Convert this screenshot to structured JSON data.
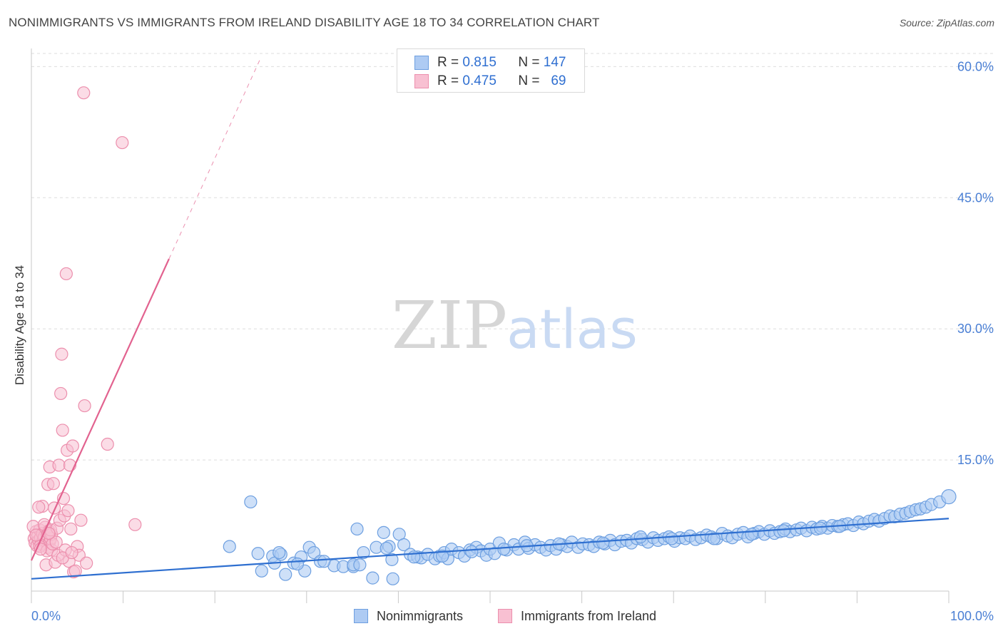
{
  "title": "NONIMMIGRANTS VS IMMIGRANTS FROM IRELAND DISABILITY AGE 18 TO 34 CORRELATION CHART",
  "source": "Source: ZipAtlas.com",
  "watermark": {
    "zip": "ZIP",
    "atlas": "atlas"
  },
  "legend_top": [
    {
      "r_label": "R =",
      "r_value": "0.815",
      "n_label": "N =",
      "n_value": "147"
    },
    {
      "r_label": "R =",
      "r_value": "0.475",
      "n_label": "N =",
      "n_value": "69"
    }
  ],
  "legend_bottom": [
    "Nonimmigrants",
    "Immigrants from Ireland"
  ],
  "colors": {
    "blue_fill": "#aecbf3",
    "blue_stroke": "#6d9fe0",
    "blue_line": "#2e6fd0",
    "pink_fill": "#f8c0d2",
    "pink_stroke": "#ec8fad",
    "pink_line": "#e2628f",
    "tick_label": "#4a7fd4",
    "grid": "#dddddd"
  },
  "chart_data": {
    "type": "scatter",
    "title": "NONIMMIGRANTS VS IMMIGRANTS FROM IRELAND DISABILITY AGE 18 TO 34 CORRELATION CHART",
    "xlabel": "",
    "ylabel": "Disability Age 18 to 34",
    "xlim": [
      0,
      100
    ],
    "ylim": [
      0,
      61.5
    ],
    "x_tick_labels": [
      "0.0%",
      "100.0%"
    ],
    "y_ticks": [
      15,
      30,
      45,
      60
    ],
    "y_tick_labels": [
      "15.0%",
      "30.0%",
      "45.0%",
      "60.0%"
    ],
    "series": [
      {
        "name": "Nonimmigrants",
        "R": 0.815,
        "N": 147,
        "trend": {
          "x": [
            0,
            100
          ],
          "y": [
            1.4,
            8.3
          ]
        },
        "points": [
          [
            21.6,
            5.1
          ],
          [
            24.7,
            4.3
          ],
          [
            25.1,
            2.3
          ],
          [
            26.3,
            4.0
          ],
          [
            26.5,
            3.2
          ],
          [
            27.2,
            4.2
          ],
          [
            27.7,
            1.9
          ],
          [
            28.6,
            3.2
          ],
          [
            29.4,
            3.9
          ],
          [
            29.8,
            2.3
          ],
          [
            30.3,
            5.0
          ],
          [
            30.8,
            4.4
          ],
          [
            31.5,
            3.4
          ],
          [
            33.0,
            2.9
          ],
          [
            34.0,
            2.8
          ],
          [
            35.1,
            2.8
          ],
          [
            35.1,
            3.0
          ],
          [
            35.5,
            7.1
          ],
          [
            35.8,
            3.0
          ],
          [
            36.2,
            4.4
          ],
          [
            37.2,
            1.5
          ],
          [
            37.6,
            5.0
          ],
          [
            38.4,
            6.7
          ],
          [
            39.0,
            5.1
          ],
          [
            39.3,
            3.6
          ],
          [
            39.4,
            1.4
          ],
          [
            40.1,
            6.5
          ],
          [
            40.6,
            5.3
          ],
          [
            41.3,
            4.2
          ],
          [
            42.1,
            3.9
          ],
          [
            42.5,
            3.8
          ],
          [
            43.2,
            4.2
          ],
          [
            44.0,
            3.7
          ],
          [
            44.5,
            4.0
          ],
          [
            45.0,
            4.4
          ],
          [
            45.4,
            3.7
          ],
          [
            45.8,
            4.8
          ],
          [
            46.6,
            4.4
          ],
          [
            47.2,
            4.0
          ],
          [
            47.8,
            4.7
          ],
          [
            48.5,
            5.0
          ],
          [
            49.0,
            4.6
          ],
          [
            49.6,
            4.1
          ],
          [
            50.0,
            4.8
          ],
          [
            50.5,
            4.3
          ],
          [
            51.0,
            5.5
          ],
          [
            51.8,
            4.7
          ],
          [
            52.6,
            5.3
          ],
          [
            53.1,
            4.8
          ],
          [
            53.8,
            5.6
          ],
          [
            54.2,
            4.9
          ],
          [
            54.9,
            5.3
          ],
          [
            55.5,
            5.0
          ],
          [
            56.1,
            4.7
          ],
          [
            56.6,
            5.2
          ],
          [
            57.2,
            4.8
          ],
          [
            57.8,
            5.3
          ],
          [
            58.4,
            5.1
          ],
          [
            58.9,
            5.6
          ],
          [
            59.6,
            5.0
          ],
          [
            60.1,
            5.4
          ],
          [
            60.8,
            5.3
          ],
          [
            61.3,
            5.1
          ],
          [
            61.9,
            5.6
          ],
          [
            62.5,
            5.4
          ],
          [
            63.1,
            5.8
          ],
          [
            63.6,
            5.3
          ],
          [
            64.3,
            5.7
          ],
          [
            64.9,
            5.8
          ],
          [
            65.4,
            5.5
          ],
          [
            66.0,
            6.0
          ],
          [
            66.6,
            5.9
          ],
          [
            67.2,
            5.6
          ],
          [
            67.8,
            6.1
          ],
          [
            68.3,
            5.8
          ],
          [
            69.0,
            6.0
          ],
          [
            69.5,
            6.2
          ],
          [
            70.1,
            5.7
          ],
          [
            70.7,
            6.1
          ],
          [
            71.3,
            6.0
          ],
          [
            71.8,
            6.3
          ],
          [
            72.4,
            5.9
          ],
          [
            73.0,
            6.1
          ],
          [
            73.6,
            6.4
          ],
          [
            74.1,
            6.2
          ],
          [
            74.7,
            6.0
          ],
          [
            75.3,
            6.6
          ],
          [
            75.9,
            6.3
          ],
          [
            76.4,
            6.1
          ],
          [
            77.0,
            6.5
          ],
          [
            77.6,
            6.7
          ],
          [
            78.1,
            6.2
          ],
          [
            78.8,
            6.6
          ],
          [
            79.3,
            6.8
          ],
          [
            79.9,
            6.5
          ],
          [
            80.5,
            6.9
          ],
          [
            81.0,
            6.6
          ],
          [
            81.6,
            6.8
          ],
          [
            82.2,
            7.1
          ],
          [
            82.7,
            6.8
          ],
          [
            83.4,
            7.0
          ],
          [
            83.9,
            7.2
          ],
          [
            84.5,
            6.9
          ],
          [
            85.1,
            7.3
          ],
          [
            85.6,
            7.1
          ],
          [
            86.2,
            7.4
          ],
          [
            86.8,
            7.2
          ],
          [
            87.3,
            7.5
          ],
          [
            87.9,
            7.4
          ],
          [
            88.5,
            7.6
          ],
          [
            89.0,
            7.7
          ],
          [
            89.6,
            7.5
          ],
          [
            90.2,
            7.9
          ],
          [
            90.7,
            7.7
          ],
          [
            91.3,
            8.0
          ],
          [
            91.9,
            8.2
          ],
          [
            92.4,
            8.0
          ],
          [
            93.0,
            8.3
          ],
          [
            93.6,
            8.6
          ],
          [
            94.1,
            8.5
          ],
          [
            94.7,
            8.8
          ],
          [
            95.3,
            8.9
          ],
          [
            95.8,
            9.1
          ],
          [
            96.4,
            9.3
          ],
          [
            96.9,
            9.4
          ],
          [
            97.5,
            9.6
          ],
          [
            98.1,
            9.9
          ],
          [
            99.0,
            10.2
          ],
          [
            62.3,
            5.5
          ],
          [
            69.8,
            6.0
          ],
          [
            74.4,
            6.0
          ],
          [
            78.5,
            6.5
          ],
          [
            82.0,
            6.9
          ],
          [
            86.0,
            7.2
          ],
          [
            88.1,
            7.4
          ],
          [
            66.4,
            6.2
          ],
          [
            57.5,
            5.4
          ],
          [
            54.0,
            5.2
          ],
          [
            51.5,
            4.8
          ],
          [
            48.0,
            4.5
          ],
          [
            44.8,
            4.0
          ],
          [
            41.7,
            3.9
          ],
          [
            38.7,
            4.9
          ],
          [
            31.9,
            3.4
          ],
          [
            29.0,
            3.1
          ],
          [
            27.0,
            4.4
          ],
          [
            23.9,
            10.2
          ]
        ]
      },
      {
        "name": "Immigrants from Ireland",
        "R": 0.475,
        "N": 69,
        "trend": {
          "x": [
            0,
            15
          ],
          "y": [
            3.5,
            38.0
          ]
        },
        "trend_dashed": {
          "x": [
            15,
            25
          ],
          "y": [
            38.0,
            61.0
          ]
        },
        "points": [
          [
            0.3,
            6.0
          ],
          [
            0.4,
            5.5
          ],
          [
            0.5,
            6.8
          ],
          [
            0.6,
            5.2
          ],
          [
            0.7,
            6.3
          ],
          [
            0.8,
            5.8
          ],
          [
            0.9,
            7.0
          ],
          [
            1.0,
            6.1
          ],
          [
            1.1,
            5.4
          ],
          [
            1.2,
            6.6
          ],
          [
            1.3,
            5.9
          ],
          [
            1.4,
            6.2
          ],
          [
            1.5,
            7.3
          ],
          [
            1.6,
            5.6
          ],
          [
            1.7,
            6.4
          ],
          [
            1.8,
            5.0
          ],
          [
            1.9,
            6.9
          ],
          [
            2.0,
            5.7
          ],
          [
            2.1,
            6.0
          ],
          [
            2.2,
            6.5
          ],
          [
            0.2,
            7.4
          ],
          [
            0.5,
            6.4
          ],
          [
            0.9,
            5.1
          ],
          [
            1.2,
            9.7
          ],
          [
            1.4,
            7.6
          ],
          [
            1.6,
            3.0
          ],
          [
            1.7,
            4.6
          ],
          [
            1.8,
            12.2
          ],
          [
            2.0,
            14.2
          ],
          [
            2.1,
            7.0
          ],
          [
            2.2,
            4.7
          ],
          [
            2.3,
            5.4
          ],
          [
            2.4,
            12.3
          ],
          [
            2.5,
            9.5
          ],
          [
            2.6,
            3.3
          ],
          [
            2.8,
            7.2
          ],
          [
            2.9,
            4.1
          ],
          [
            3.0,
            14.4
          ],
          [
            3.1,
            8.1
          ],
          [
            3.2,
            22.6
          ],
          [
            3.3,
            27.1
          ],
          [
            3.4,
            18.4
          ],
          [
            3.5,
            10.6
          ],
          [
            3.6,
            8.6
          ],
          [
            3.7,
            4.7
          ],
          [
            3.8,
            36.3
          ],
          [
            3.9,
            16.1
          ],
          [
            4.0,
            9.2
          ],
          [
            4.1,
            3.4
          ],
          [
            4.2,
            14.4
          ],
          [
            4.3,
            7.1
          ],
          [
            4.5,
            16.6
          ],
          [
            4.6,
            2.2
          ],
          [
            4.8,
            2.3
          ],
          [
            5.0,
            5.1
          ],
          [
            5.2,
            4.1
          ],
          [
            5.4,
            8.1
          ],
          [
            5.7,
            57.0
          ],
          [
            5.8,
            21.2
          ],
          [
            6.0,
            3.2
          ],
          [
            8.3,
            16.8
          ],
          [
            9.9,
            51.3
          ],
          [
            11.3,
            7.6
          ],
          [
            0.8,
            9.6
          ],
          [
            1.0,
            4.8
          ],
          [
            2.7,
            5.6
          ],
          [
            3.4,
            3.8
          ],
          [
            4.4,
            4.4
          ],
          [
            1.9,
            6.6
          ]
        ]
      }
    ]
  }
}
